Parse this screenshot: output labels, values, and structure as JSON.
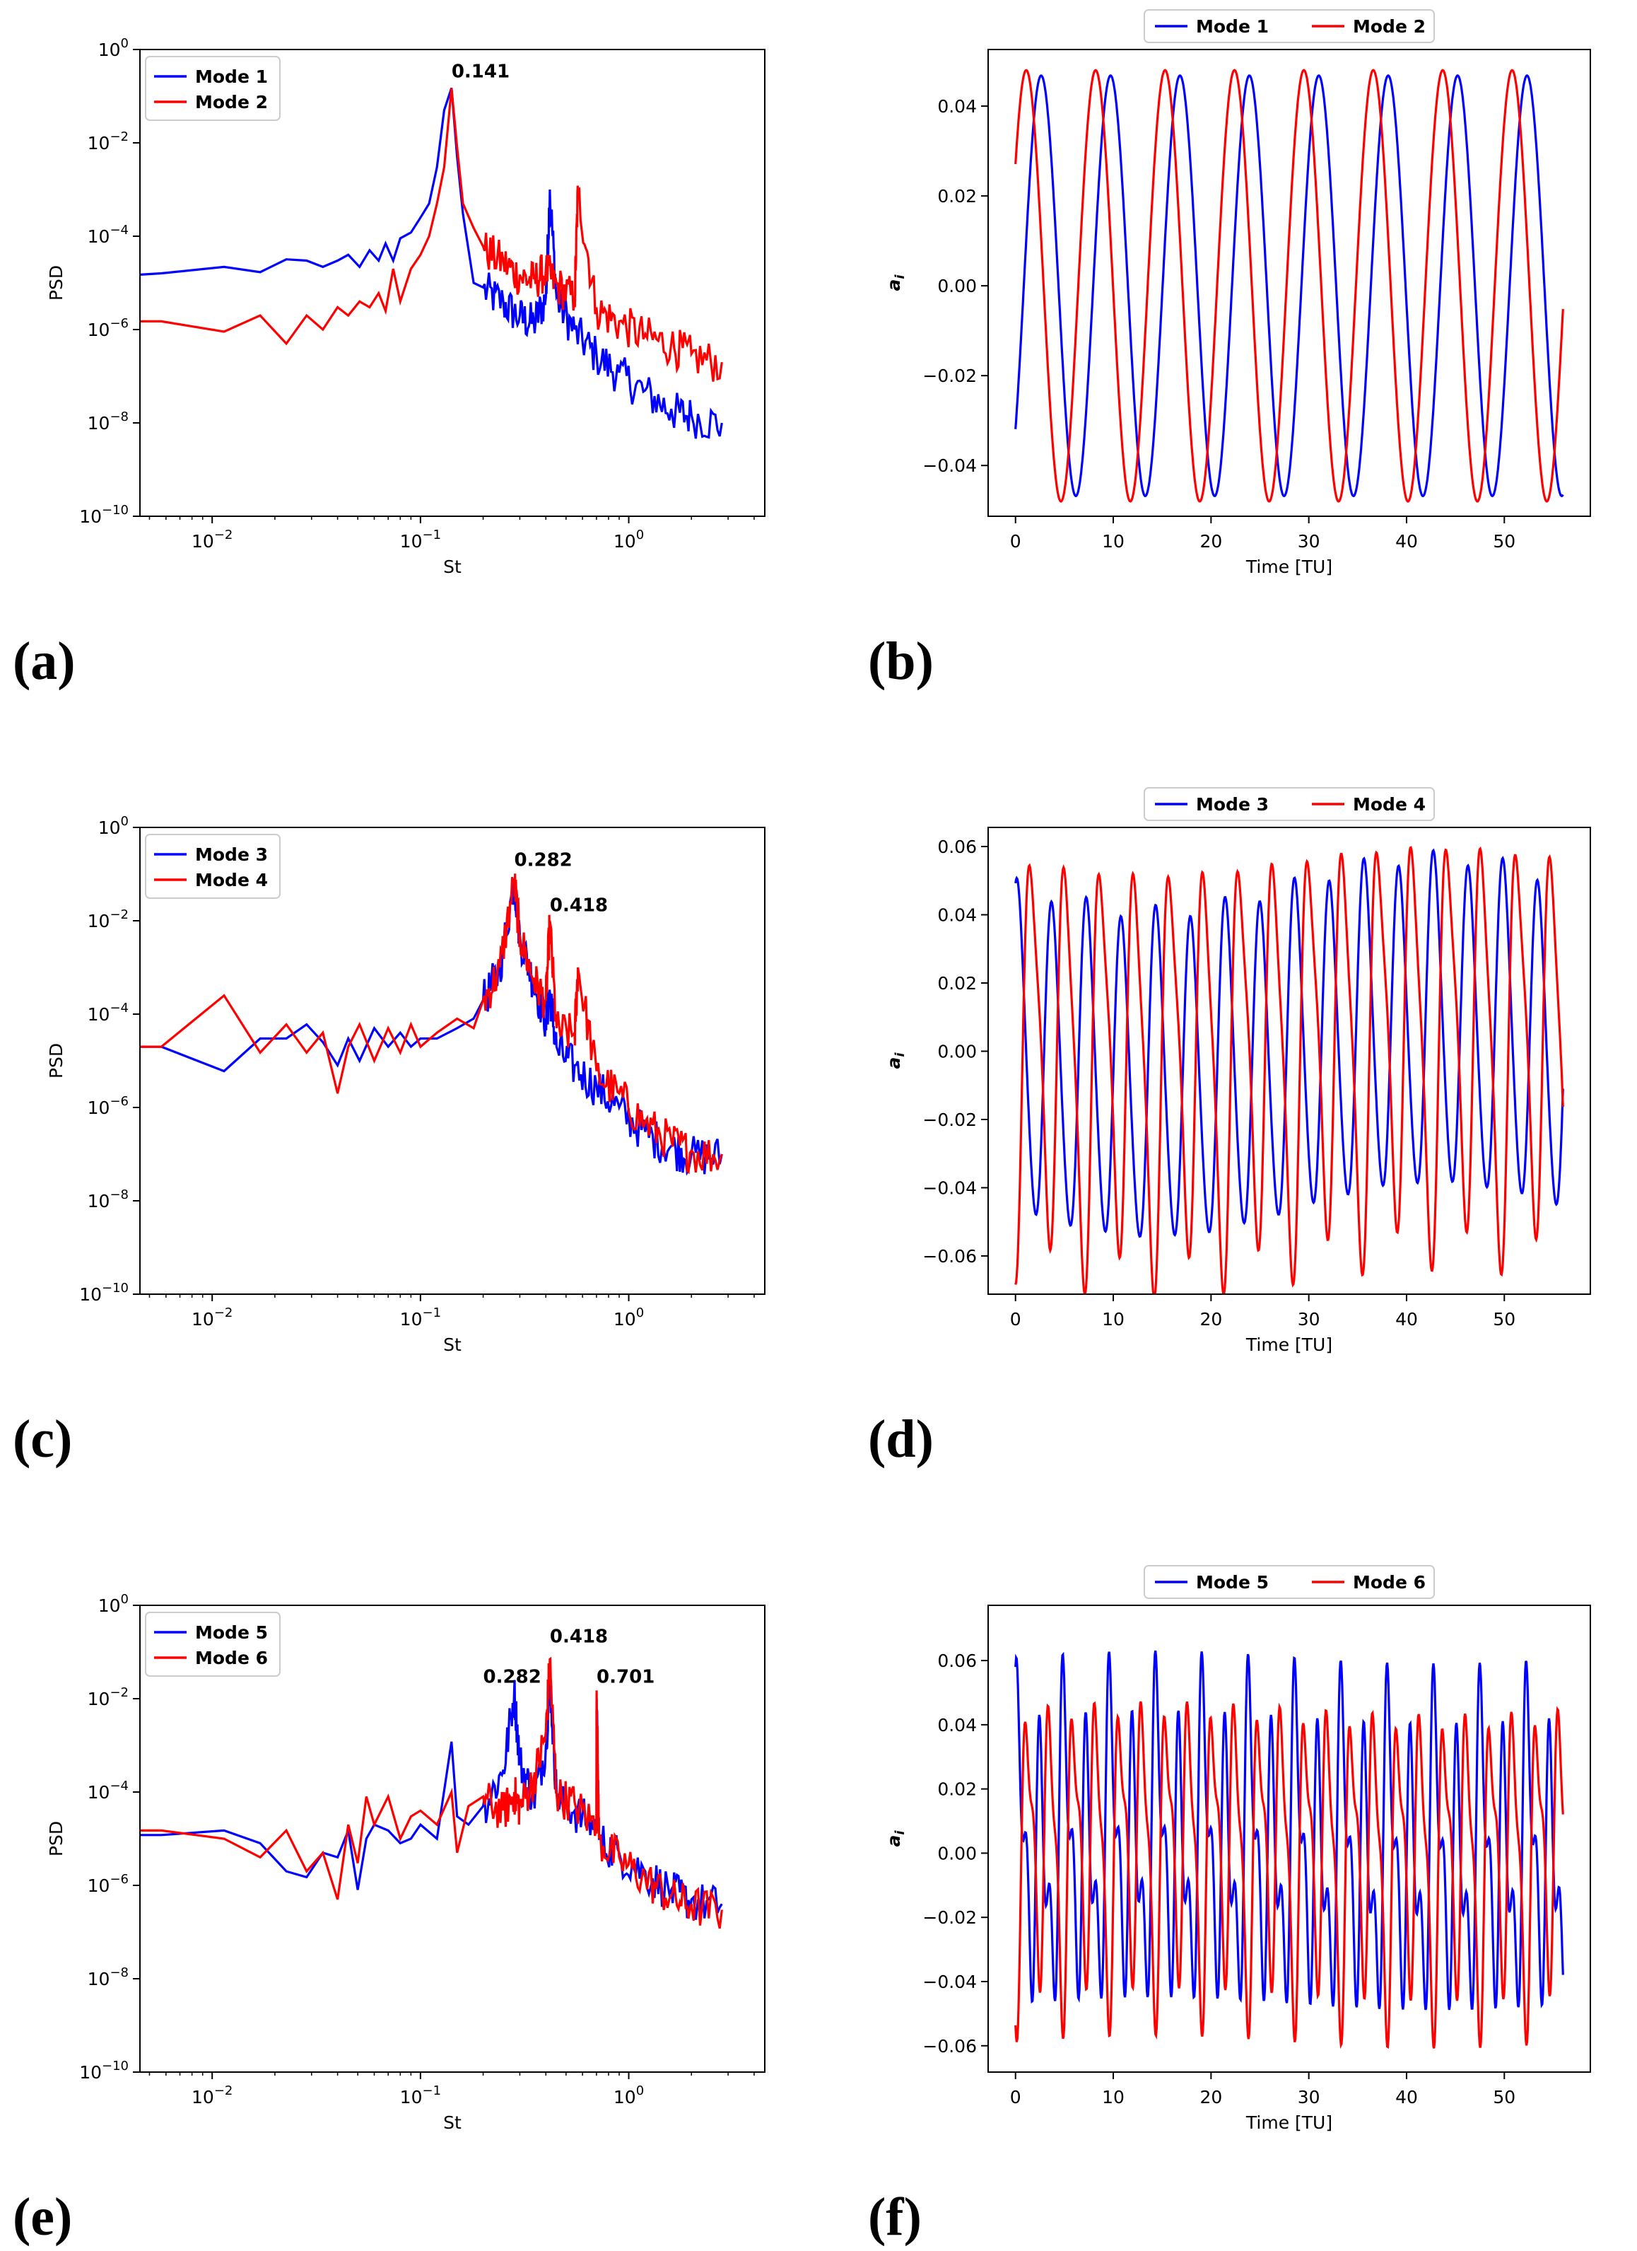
{
  "colors": {
    "mode_a": "#0000ff",
    "mode_b": "#ff0000",
    "axis": "#000000"
  },
  "chart_data": [
    {
      "panel": "(a)",
      "type": "line",
      "xscale": "log",
      "yscale": "log",
      "xlabel": "St",
      "ylabel": "PSD",
      "xlim": [
        0.0045,
        4.5
      ],
      "ylim": [
        1e-10,
        1
      ],
      "xticks": [
        {
          "value": 0.01,
          "base": "10",
          "exp": "−2"
        },
        {
          "value": 0.1,
          "base": "10",
          "exp": "−1"
        },
        {
          "value": 1,
          "base": "10",
          "exp": "0"
        }
      ],
      "yticks": [
        {
          "value": 1e-10,
          "base": "10",
          "exp": "−10"
        },
        {
          "value": 1e-08,
          "base": "10",
          "exp": "−8"
        },
        {
          "value": 1e-06,
          "base": "10",
          "exp": "−6"
        },
        {
          "value": 0.0001,
          "base": "10",
          "exp": "−4"
        },
        {
          "value": 0.01,
          "base": "10",
          "exp": "−2"
        },
        {
          "value": 1,
          "base": "10",
          "exp": "0"
        }
      ],
      "legend": {
        "placement": "top-left"
      },
      "annotations": [
        {
          "text": "0.141",
          "x": 0.141,
          "y": 0.25
        }
      ],
      "series": [
        {
          "name": "Mode 1",
          "color": "#0000ff",
          "x": [
            0.0045,
            0.0057,
            0.0114,
            0.017,
            0.0227,
            0.0284,
            0.034,
            0.04,
            0.045,
            0.051,
            0.057,
            0.063,
            0.068,
            0.074,
            0.08,
            0.09,
            0.1,
            0.11,
            0.12,
            0.13,
            0.141,
            0.15,
            0.16,
            0.18,
            0.2,
            0.25,
            0.3,
            0.35,
            0.4,
            0.418,
            0.45,
            0.55,
            0.7,
            0.9,
            1.2,
            1.6,
            2.0,
            2.8
          ],
          "y": [
            1.5e-05,
            1.6e-05,
            2.2e-05,
            1.7e-05,
            3.2e-05,
            3e-05,
            2.2e-05,
            3e-05,
            4e-05,
            2.2e-05,
            5e-05,
            3e-05,
            7e-05,
            3e-05,
            9e-05,
            0.00012,
            0.00025,
            0.0005,
            0.003,
            0.05,
            0.15,
            0.005,
            0.0003,
            1e-05,
            8e-06,
            4e-06,
            2e-06,
            1.5e-06,
            5e-06,
            0.001,
            5e-06,
            1e-06,
            3e-07,
            1.2e-07,
            5e-08,
            2e-08,
            1.5e-08,
            1e-08
          ]
        },
        {
          "name": "Mode 2",
          "color": "#ff0000",
          "x": [
            0.0045,
            0.0057,
            0.0114,
            0.017,
            0.0227,
            0.0284,
            0.034,
            0.04,
            0.045,
            0.051,
            0.057,
            0.063,
            0.068,
            0.074,
            0.08,
            0.09,
            0.1,
            0.11,
            0.12,
            0.13,
            0.141,
            0.15,
            0.16,
            0.18,
            0.2,
            0.25,
            0.3,
            0.35,
            0.4,
            0.45,
            0.55,
            0.57,
            0.7,
            0.9,
            1.2,
            1.6,
            2.0,
            2.8
          ],
          "y": [
            1.5e-06,
            1.5e-06,
            9e-07,
            2e-06,
            5e-07,
            2e-06,
            1e-06,
            3e-06,
            2e-06,
            4e-06,
            3e-06,
            6e-06,
            2.5e-06,
            2e-05,
            4e-06,
            2e-05,
            4e-05,
            0.0001,
            0.0005,
            0.003,
            0.15,
            0.008,
            0.0005,
            0.00015,
            6e-05,
            3e-05,
            1.5e-05,
            1.2e-05,
            2e-05,
            1e-05,
            5e-06,
            0.001,
            3e-06,
            1.5e-06,
            8e-07,
            5e-07,
            3e-07,
            2e-07
          ]
        }
      ]
    },
    {
      "panel": "(b)",
      "type": "line",
      "xlabel": "Time [TU]",
      "ylabel": "a_i",
      "ylabel_base": "a",
      "ylabel_sub": "i",
      "xlim": [
        -2.8,
        58.8
      ],
      "ylim": [
        -0.0513,
        0.0526
      ],
      "xticks": [
        {
          "value": 0,
          "label": "0"
        },
        {
          "value": 10,
          "label": "10"
        },
        {
          "value": 20,
          "label": "20"
        },
        {
          "value": 30,
          "label": "30"
        },
        {
          "value": 40,
          "label": "40"
        },
        {
          "value": 50,
          "label": "50"
        }
      ],
      "yticks": [
        {
          "value": -0.04,
          "label": "−0.04"
        },
        {
          "value": -0.02,
          "label": "−0.02"
        },
        {
          "value": 0.0,
          "label": "0.00"
        },
        {
          "value": 0.02,
          "label": "0.02"
        },
        {
          "value": 0.04,
          "label": "0.04"
        }
      ],
      "legend": {
        "placement": "top-center-outside"
      },
      "series": [
        {
          "name": "Mode 1",
          "color": "#0000ff",
          "generator": {
            "t_end": 56,
            "amp": 0.0468,
            "period": 7.1,
            "phase": -0.75,
            "trend": 0
          }
        },
        {
          "name": "Mode 2",
          "color": "#ff0000",
          "generator": {
            "t_end": 56,
            "amp": 0.048,
            "period": 7.1,
            "phase": 0.6,
            "trend": 0
          }
        }
      ]
    },
    {
      "panel": "(c)",
      "type": "line",
      "xscale": "log",
      "yscale": "log",
      "xlabel": "St",
      "ylabel": "PSD",
      "xlim": [
        0.0045,
        4.5
      ],
      "ylim": [
        1e-10,
        1
      ],
      "xticks": [
        {
          "value": 0.01,
          "base": "10",
          "exp": "−2"
        },
        {
          "value": 0.1,
          "base": "10",
          "exp": "−1"
        },
        {
          "value": 1,
          "base": "10",
          "exp": "0"
        }
      ],
      "yticks": [
        {
          "value": 1e-10,
          "base": "10",
          "exp": "−10"
        },
        {
          "value": 1e-08,
          "base": "10",
          "exp": "−8"
        },
        {
          "value": 1e-06,
          "base": "10",
          "exp": "−6"
        },
        {
          "value": 0.0001,
          "base": "10",
          "exp": "−4"
        },
        {
          "value": 0.01,
          "base": "10",
          "exp": "−2"
        },
        {
          "value": 1,
          "base": "10",
          "exp": "0"
        }
      ],
      "legend": {
        "placement": "top-left"
      },
      "annotations": [
        {
          "text": "0.282",
          "x": 0.282,
          "y": 0.15
        },
        {
          "text": "0.418",
          "x": 0.418,
          "y": 0.016
        }
      ],
      "series": [
        {
          "name": "Mode 3",
          "color": "#0000ff",
          "x": [
            0.0045,
            0.0057,
            0.0114,
            0.017,
            0.0227,
            0.0284,
            0.034,
            0.04,
            0.045,
            0.051,
            0.06,
            0.07,
            0.08,
            0.09,
            0.1,
            0.12,
            0.15,
            0.18,
            0.2,
            0.24,
            0.282,
            0.3,
            0.35,
            0.4,
            0.418,
            0.45,
            0.55,
            0.7,
            0.9,
            1.2,
            1.6,
            2.0,
            2.8
          ],
          "y": [
            2e-05,
            2e-05,
            6e-06,
            3e-05,
            3e-05,
            6e-05,
            2.5e-05,
            8e-06,
            3e-05,
            1e-05,
            5e-05,
            2e-05,
            4e-05,
            2e-05,
            3e-05,
            3e-05,
            5e-05,
            8e-05,
            0.0002,
            0.001,
            0.08,
            0.005,
            0.0005,
            8e-05,
            0.0003,
            2e-05,
            8e-06,
            3e-06,
            1e-06,
            3e-07,
            1.5e-07,
            1e-07,
            1e-07
          ]
        },
        {
          "name": "Mode 4",
          "color": "#ff0000",
          "x": [
            0.0045,
            0.0057,
            0.0114,
            0.017,
            0.0227,
            0.0284,
            0.034,
            0.04,
            0.045,
            0.051,
            0.06,
            0.07,
            0.08,
            0.09,
            0.1,
            0.12,
            0.15,
            0.18,
            0.2,
            0.24,
            0.282,
            0.3,
            0.35,
            0.4,
            0.418,
            0.45,
            0.55,
            0.57,
            0.7,
            0.9,
            1.2,
            1.6,
            2.0,
            2.8
          ],
          "y": [
            2e-05,
            2e-05,
            0.00025,
            1.5e-05,
            6e-05,
            1.5e-05,
            4e-05,
            2e-06,
            2e-05,
            6e-05,
            1e-05,
            5e-05,
            1.5e-05,
            6e-05,
            2e-05,
            4e-05,
            8e-05,
            5e-05,
            0.0002,
            0.001,
            0.08,
            0.005,
            0.0006,
            0.0002,
            0.01,
            5e-05,
            4e-05,
            0.001,
            6e-06,
            2e-06,
            5e-07,
            2e-07,
            1.2e-07,
            1e-07
          ]
        }
      ]
    },
    {
      "panel": "(d)",
      "type": "line",
      "xlabel": "Time [TU]",
      "ylabel": "a_i",
      "ylabel_base": "a",
      "ylabel_sub": "i",
      "xlim": [
        -2.8,
        58.8
      ],
      "ylim": [
        -0.0712,
        0.0656
      ],
      "xticks": [
        {
          "value": 0,
          "label": "0"
        },
        {
          "value": 10,
          "label": "10"
        },
        {
          "value": 20,
          "label": "20"
        },
        {
          "value": 30,
          "label": "30"
        },
        {
          "value": 40,
          "label": "40"
        },
        {
          "value": 50,
          "label": "50"
        }
      ],
      "yticks": [
        {
          "value": -0.06,
          "label": "−0.06"
        },
        {
          "value": -0.04,
          "label": "−0.04"
        },
        {
          "value": -0.02,
          "label": "−0.02"
        },
        {
          "value": 0.0,
          "label": "0.00"
        },
        {
          "value": 0.02,
          "label": "0.02"
        },
        {
          "value": 0.04,
          "label": "0.04"
        },
        {
          "value": 0.06,
          "label": "0.06"
        }
      ],
      "legend": {
        "placement": "top-center-outside"
      },
      "series": [
        {
          "name": "Mode 3",
          "color": "#0000ff",
          "generator": {
            "t_end": 56,
            "amp": 0.047,
            "period": 3.55,
            "phase": 1.2,
            "trend": -0.008,
            "harm": 0.004
          }
        },
        {
          "name": "Mode 4",
          "color": "#ff0000",
          "generator": {
            "t_end": 56,
            "amp": 0.055,
            "period": 3.55,
            "phase": -1.3,
            "trend": -0.004,
            "harm": 0.012
          }
        }
      ]
    },
    {
      "panel": "(e)",
      "type": "line",
      "xscale": "log",
      "yscale": "log",
      "xlabel": "St",
      "ylabel": "PSD",
      "xlim": [
        0.0045,
        4.5
      ],
      "ylim": [
        1e-10,
        1
      ],
      "xticks": [
        {
          "value": 0.01,
          "base": "10",
          "exp": "−2"
        },
        {
          "value": 0.1,
          "base": "10",
          "exp": "−1"
        },
        {
          "value": 1,
          "base": "10",
          "exp": "0"
        }
      ],
      "yticks": [
        {
          "value": 1e-10,
          "base": "10",
          "exp": "−10"
        },
        {
          "value": 1e-08,
          "base": "10",
          "exp": "−8"
        },
        {
          "value": 1e-06,
          "base": "10",
          "exp": "−6"
        },
        {
          "value": 0.0001,
          "base": "10",
          "exp": "−4"
        },
        {
          "value": 0.01,
          "base": "10",
          "exp": "−2"
        },
        {
          "value": 1,
          "base": "10",
          "exp": "0"
        }
      ],
      "legend": {
        "placement": "top-left"
      },
      "annotations": [
        {
          "text": "0.282",
          "x": 0.2,
          "y": 0.022
        },
        {
          "text": "0.418",
          "x": 0.418,
          "y": 0.16
        },
        {
          "text": "0.701",
          "x": 0.701,
          "y": 0.022
        }
      ],
      "series": [
        {
          "name": "Mode 5",
          "color": "#0000ff",
          "x": [
            0.0045,
            0.0057,
            0.0114,
            0.017,
            0.0227,
            0.0284,
            0.034,
            0.04,
            0.045,
            0.05,
            0.055,
            0.06,
            0.07,
            0.08,
            0.09,
            0.1,
            0.12,
            0.141,
            0.15,
            0.17,
            0.2,
            0.25,
            0.282,
            0.3,
            0.35,
            0.4,
            0.418,
            0.45,
            0.55,
            0.7,
            0.701,
            0.72,
            0.9,
            1.2,
            1.6,
            2.0,
            2.8
          ],
          "y": [
            1.2e-05,
            1.2e-05,
            1.5e-05,
            8e-06,
            2e-06,
            1.5e-06,
            5e-06,
            4e-06,
            1.5e-05,
            8e-07,
            1e-05,
            2e-05,
            1.5e-05,
            8e-06,
            1e-05,
            2e-05,
            1e-05,
            0.0012,
            3e-05,
            2e-05,
            5e-05,
            0.0003,
            0.015,
            0.0005,
            8e-05,
            0.001,
            0.03,
            0.0001,
            4e-05,
            2e-05,
            0.01,
            1e-05,
            5e-06,
            2e-06,
            8e-07,
            5e-07,
            4e-07
          ]
        },
        {
          "name": "Mode 6",
          "color": "#ff0000",
          "x": [
            0.0045,
            0.0057,
            0.0114,
            0.017,
            0.0227,
            0.0284,
            0.034,
            0.04,
            0.045,
            0.05,
            0.055,
            0.06,
            0.07,
            0.08,
            0.09,
            0.1,
            0.12,
            0.141,
            0.15,
            0.17,
            0.2,
            0.25,
            0.282,
            0.3,
            0.35,
            0.4,
            0.418,
            0.45,
            0.55,
            0.7,
            0.701,
            0.72,
            0.9,
            1.2,
            1.6,
            2.0,
            2.8
          ],
          "y": [
            1.5e-05,
            1.5e-05,
            1e-05,
            4e-06,
            1.5e-05,
            2e-06,
            5e-06,
            5e-07,
            2e-05,
            3e-06,
            8e-05,
            2e-05,
            8e-05,
            1e-05,
            3e-05,
            4e-05,
            2e-05,
            0.0001,
            5e-06,
            5e-05,
            8e-05,
            4e-05,
            0.0001,
            5e-05,
            0.0002,
            0.002,
            0.07,
            0.0001,
            6e-05,
            2e-05,
            0.015,
            1e-05,
            4e-06,
            1.5e-06,
            6e-07,
            4e-07,
            3e-07
          ]
        }
      ]
    },
    {
      "panel": "(f)",
      "type": "line",
      "xlabel": "Time [TU]",
      "ylabel": "a_i",
      "ylabel_base": "a",
      "ylabel_sub": "i",
      "xlim": [
        -2.8,
        58.8
      ],
      "ylim": [
        -0.0682,
        0.0772
      ],
      "xticks": [
        {
          "value": 0,
          "label": "0"
        },
        {
          "value": 10,
          "label": "10"
        },
        {
          "value": 20,
          "label": "20"
        },
        {
          "value": 30,
          "label": "30"
        },
        {
          "value": 40,
          "label": "40"
        },
        {
          "value": 50,
          "label": "50"
        }
      ],
      "yticks": [
        {
          "value": -0.06,
          "label": "−0.06"
        },
        {
          "value": -0.04,
          "label": "−0.04"
        },
        {
          "value": -0.02,
          "label": "−0.02"
        },
        {
          "value": 0.0,
          "label": "0.00"
        },
        {
          "value": 0.02,
          "label": "0.02"
        },
        {
          "value": 0.04,
          "label": "0.04"
        },
        {
          "value": 0.06,
          "label": "0.06"
        }
      ],
      "legend": {
        "placement": "top-center-outside"
      },
      "series": [
        {
          "name": "Mode 5",
          "color": "#0000ff",
          "generator": {
            "t_end": 56,
            "amp": 0.035,
            "period": 2.37,
            "phase": 0.9,
            "trend": 0.002,
            "harm": 0.022
          }
        },
        {
          "name": "Mode 6",
          "color": "#ff0000",
          "generator": {
            "t_end": 56,
            "amp": 0.04,
            "period": 2.37,
            "phase": -1.6,
            "trend": 0.002,
            "harm": 0.015
          }
        }
      ]
    }
  ]
}
